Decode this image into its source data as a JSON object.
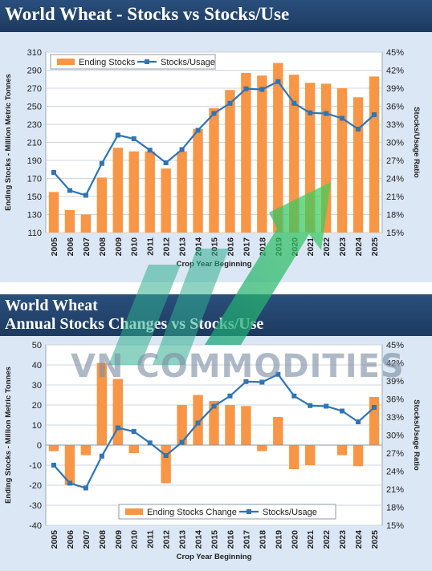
{
  "chart1": {
    "title": "World Wheat - Stocks vs Stocks/Use",
    "ylabel": "Ending Stocks - Million Metric Tonnes",
    "y2label": "Stocks/Usage Ratio",
    "xlabel": "Crop Year Beginning",
    "legend": [
      "Ending Stocks",
      "Stocks/Usage"
    ]
  },
  "chart2": {
    "title_line1": "World Wheat",
    "title_line2": "Annual Stocks Changes vs Stocks/Use",
    "ylabel": "Ending Stocks - Million Metric Tonnes",
    "y2label": "Stocks/Usage Ratio",
    "xlabel": "Crop Year Beginning",
    "legend": [
      "Ending Stocks Change",
      "Stocks/Usage"
    ]
  },
  "watermark": "VN COMMODITIES",
  "colors": {
    "bar": "#f79646",
    "line": "#2e75b6",
    "banner": "#1f3f66",
    "plot_bg": "#ffffff",
    "frame_bg": "#dbe7f5"
  },
  "chart_data": [
    {
      "type": "bar",
      "title": "World Wheat - Stocks vs Stocks/Use",
      "xlabel": "Crop Year Beginning",
      "ylabel": "Ending Stocks - Million Metric Tonnes",
      "y2label": "Stocks/Usage Ratio",
      "categories": [
        "2005",
        "2006",
        "2007",
        "2008",
        "2009",
        "2010",
        "2011",
        "2012",
        "2013",
        "2014",
        "2015",
        "2016",
        "2017",
        "2018",
        "2019",
        "2020",
        "2021",
        "2022",
        "2023",
        "2024",
        "2025"
      ],
      "series": [
        {
          "name": "Ending Stocks",
          "type": "bar",
          "axis": "left",
          "values": [
            155,
            135,
            130,
            171,
            204,
            200,
            200,
            181,
            200,
            225,
            248,
            268,
            287,
            284,
            298,
            285,
            276,
            275,
            270,
            260,
            283
          ]
        },
        {
          "name": "Stocks/Usage",
          "type": "line",
          "axis": "right",
          "unit": "%",
          "values": [
            25.0,
            22.0,
            21.2,
            26.5,
            31.2,
            30.6,
            28.7,
            26.6,
            28.8,
            32.0,
            34.8,
            36.5,
            38.9,
            38.8,
            40.1,
            36.5,
            34.9,
            34.8,
            34.0,
            32.2,
            34.6
          ]
        }
      ],
      "ylim": [
        110,
        310
      ],
      "yticks": [
        110,
        130,
        150,
        170,
        190,
        210,
        230,
        250,
        270,
        290,
        310
      ],
      "y2lim": [
        15,
        45
      ],
      "y2ticks": [
        "15%",
        "18%",
        "21%",
        "24%",
        "27%",
        "30%",
        "33%",
        "36%",
        "39%",
        "42%",
        "45%"
      ],
      "legend_position": "top-left",
      "grid": true
    },
    {
      "type": "bar",
      "title": "World Wheat Annual Stocks Changes vs Stocks/Use",
      "xlabel": "Crop Year Beginning",
      "ylabel": "Ending Stocks - Million Metric Tonnes",
      "y2label": "Stocks/Usage Ratio",
      "categories": [
        "2005",
        "2006",
        "2007",
        "2008",
        "2009",
        "2010",
        "2011",
        "2012",
        "2013",
        "2014",
        "2015",
        "2016",
        "2017",
        "2018",
        "2019",
        "2020",
        "2021",
        "2022",
        "2023",
        "2024",
        "2025"
      ],
      "series": [
        {
          "name": "Ending Stocks Change",
          "type": "bar",
          "axis": "left",
          "values": [
            -3,
            -20,
            -5,
            41,
            33,
            -4,
            0,
            -19,
            20,
            25,
            22,
            20,
            19.5,
            -3,
            14,
            -12,
            -10,
            0,
            -5,
            -10.5,
            24
          ]
        },
        {
          "name": "Stocks/Usage",
          "type": "line",
          "axis": "right",
          "unit": "%",
          "values": [
            25.0,
            22.0,
            21.2,
            26.5,
            31.2,
            30.6,
            28.7,
            26.6,
            28.8,
            32.0,
            34.8,
            36.5,
            38.9,
            38.8,
            40.1,
            36.5,
            34.9,
            34.8,
            34.0,
            32.2,
            34.6
          ]
        }
      ],
      "ylim": [
        -40,
        50
      ],
      "yticks": [
        -40,
        -30,
        -20,
        -10,
        0,
        10,
        20,
        30,
        40,
        50
      ],
      "y2lim": [
        15,
        45
      ],
      "y2ticks": [
        "15%",
        "18%",
        "21%",
        "24%",
        "27%",
        "30%",
        "33%",
        "36%",
        "39%",
        "42%",
        "45%"
      ],
      "legend_position": "bottom-center",
      "grid": true
    }
  ]
}
